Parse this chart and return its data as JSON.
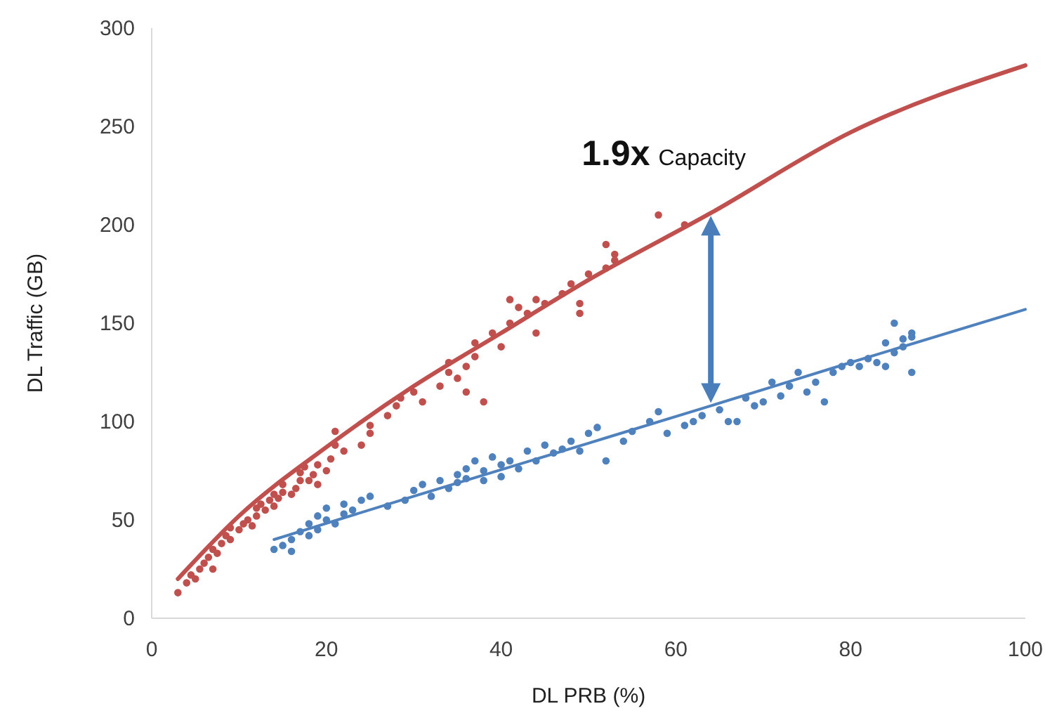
{
  "chart_data": {
    "type": "scatter",
    "xlabel": "DL PRB (%)",
    "ylabel": "DL Traffic (GB)",
    "xlim": [
      0,
      100
    ],
    "xticks": [
      0,
      20,
      40,
      60,
      80,
      100
    ],
    "ylim": [
      0,
      300
    ],
    "yticks": [
      0,
      50,
      100,
      150,
      200,
      250,
      300
    ],
    "marker": "circle",
    "annotations": [
      {
        "text": "1.9x",
        "x": 64,
        "y": 206
      },
      "Capacity"
    ],
    "series": [
      {
        "color": "#c0504d",
        "x": [
          3,
          4,
          4.5,
          5,
          5.5,
          6,
          6.5,
          7,
          7,
          7.5,
          8,
          8.5,
          9,
          9,
          10,
          10.5,
          11,
          11.5,
          12,
          12,
          12.5,
          13,
          13.5,
          14,
          14,
          14.5,
          15,
          15,
          16,
          16.5,
          17,
          17,
          17.5,
          18,
          18.5,
          19,
          19,
          20,
          20.5,
          21,
          21,
          22,
          24,
          25,
          25,
          27,
          28,
          28.5,
          30,
          31,
          33,
          34,
          34,
          35,
          36,
          36,
          37,
          37,
          38,
          39,
          40,
          41,
          41,
          42,
          43,
          44,
          44,
          45,
          47,
          48,
          49,
          49,
          50,
          52,
          52,
          53,
          53,
          58,
          61
        ],
        "values": [
          13,
          18,
          22,
          20,
          25,
          28,
          31,
          25,
          35,
          33,
          38,
          42,
          40,
          46,
          45,
          48,
          50,
          47,
          52,
          56,
          58,
          55,
          60,
          57,
          63,
          61,
          64,
          68,
          63,
          66,
          70,
          74,
          77,
          70,
          73,
          68,
          78,
          75,
          81,
          95,
          88,
          85,
          88,
          94,
          98,
          103,
          108,
          112,
          115,
          110,
          118,
          125,
          130,
          122,
          115,
          128,
          133,
          140,
          110,
          145,
          138,
          150,
          162,
          158,
          155,
          145,
          162,
          160,
          165,
          170,
          160,
          155,
          175,
          178,
          190,
          185,
          182,
          205,
          200
        ]
      },
      {
        "type": "line",
        "marker": "none",
        "color": "#c0504d",
        "x": [
          3,
          10,
          20,
          30,
          40,
          50,
          64,
          80,
          100
        ],
        "values": [
          20,
          52,
          87,
          118,
          145,
          172,
          206,
          247,
          281
        ]
      },
      {
        "color": "#4f81bd",
        "x": [
          14,
          15,
          16,
          16,
          17,
          18,
          18,
          19,
          19,
          20,
          20,
          21,
          22,
          22,
          23,
          24,
          25,
          27,
          29,
          30,
          31,
          32,
          33,
          34,
          35,
          35,
          36,
          36,
          37,
          38,
          38,
          39,
          40,
          40,
          41,
          42,
          43,
          44,
          45,
          46,
          47,
          48,
          49,
          50,
          51,
          52,
          54,
          55,
          57,
          58,
          59,
          61,
          62,
          63,
          65,
          66,
          67,
          68,
          69,
          70,
          71,
          72,
          73,
          74,
          75,
          76,
          77,
          78,
          79,
          80,
          81,
          82,
          83,
          84,
          84,
          85,
          85,
          86,
          86,
          87,
          87,
          87
        ],
        "values": [
          35,
          37,
          34,
          40,
          44,
          42,
          48,
          45,
          52,
          50,
          56,
          48,
          53,
          58,
          55,
          60,
          62,
          57,
          60,
          65,
          68,
          62,
          70,
          66,
          73,
          69,
          76,
          71,
          80,
          75,
          70,
          82,
          78,
          72,
          80,
          76,
          85,
          80,
          88,
          84,
          86,
          90,
          85,
          94,
          97,
          80,
          90,
          95,
          100,
          105,
          94,
          98,
          100,
          103,
          106,
          100,
          100,
          112,
          108,
          110,
          120,
          113,
          118,
          125,
          115,
          120,
          110,
          125,
          128,
          130,
          128,
          132,
          130,
          140,
          128,
          135,
          150,
          142,
          138,
          145,
          125,
          143
        ]
      },
      {
        "type": "line",
        "marker": "none",
        "color": "#4f81bd",
        "x": [
          14,
          30,
          50,
          64,
          80,
          100
        ],
        "values": [
          40,
          62,
          89,
          108,
          130,
          157
        ]
      }
    ]
  }
}
